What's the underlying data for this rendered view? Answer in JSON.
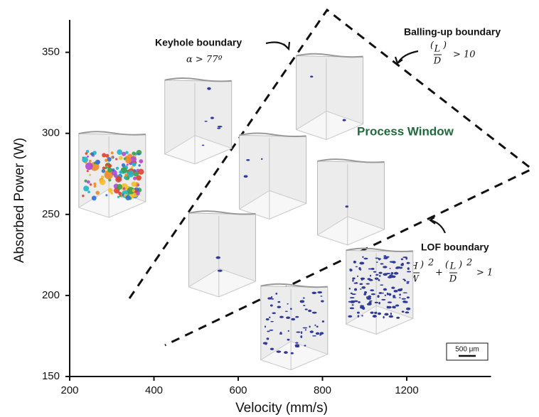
{
  "chart_data": {
    "type": "scatter",
    "x_label": "Velocity (mm/s)",
    "y_label": "Absorbed Power (W)",
    "x": [
      301,
      505,
      834,
      682,
      935,
      562,
      733,
      1071
    ],
    "values": [
      274,
      307,
      322,
      273,
      257,
      225,
      180,
      202
    ],
    "color": "#2f3a9a",
    "xlim": [
      200,
      1600
    ],
    "xticks": [
      200,
      400,
      600,
      800,
      1200
    ],
    "ylim": [
      150,
      370
    ],
    "yticks": [
      150,
      200,
      250,
      300,
      350
    ],
    "annotations": {
      "keyhole": "Keyhole boundary",
      "keyhole_condition": "α > 77º",
      "balling": "Balling-up boundary",
      "balling_condition": "> 10",
      "window": "Process Window",
      "lof": "LOF boundary",
      "lof_plus": "+",
      "lof_condition": "> 1",
      "L": "L",
      "D": "D",
      "H": "H",
      "W": "W",
      "exp": "2",
      "scale": "500 μm"
    }
  }
}
